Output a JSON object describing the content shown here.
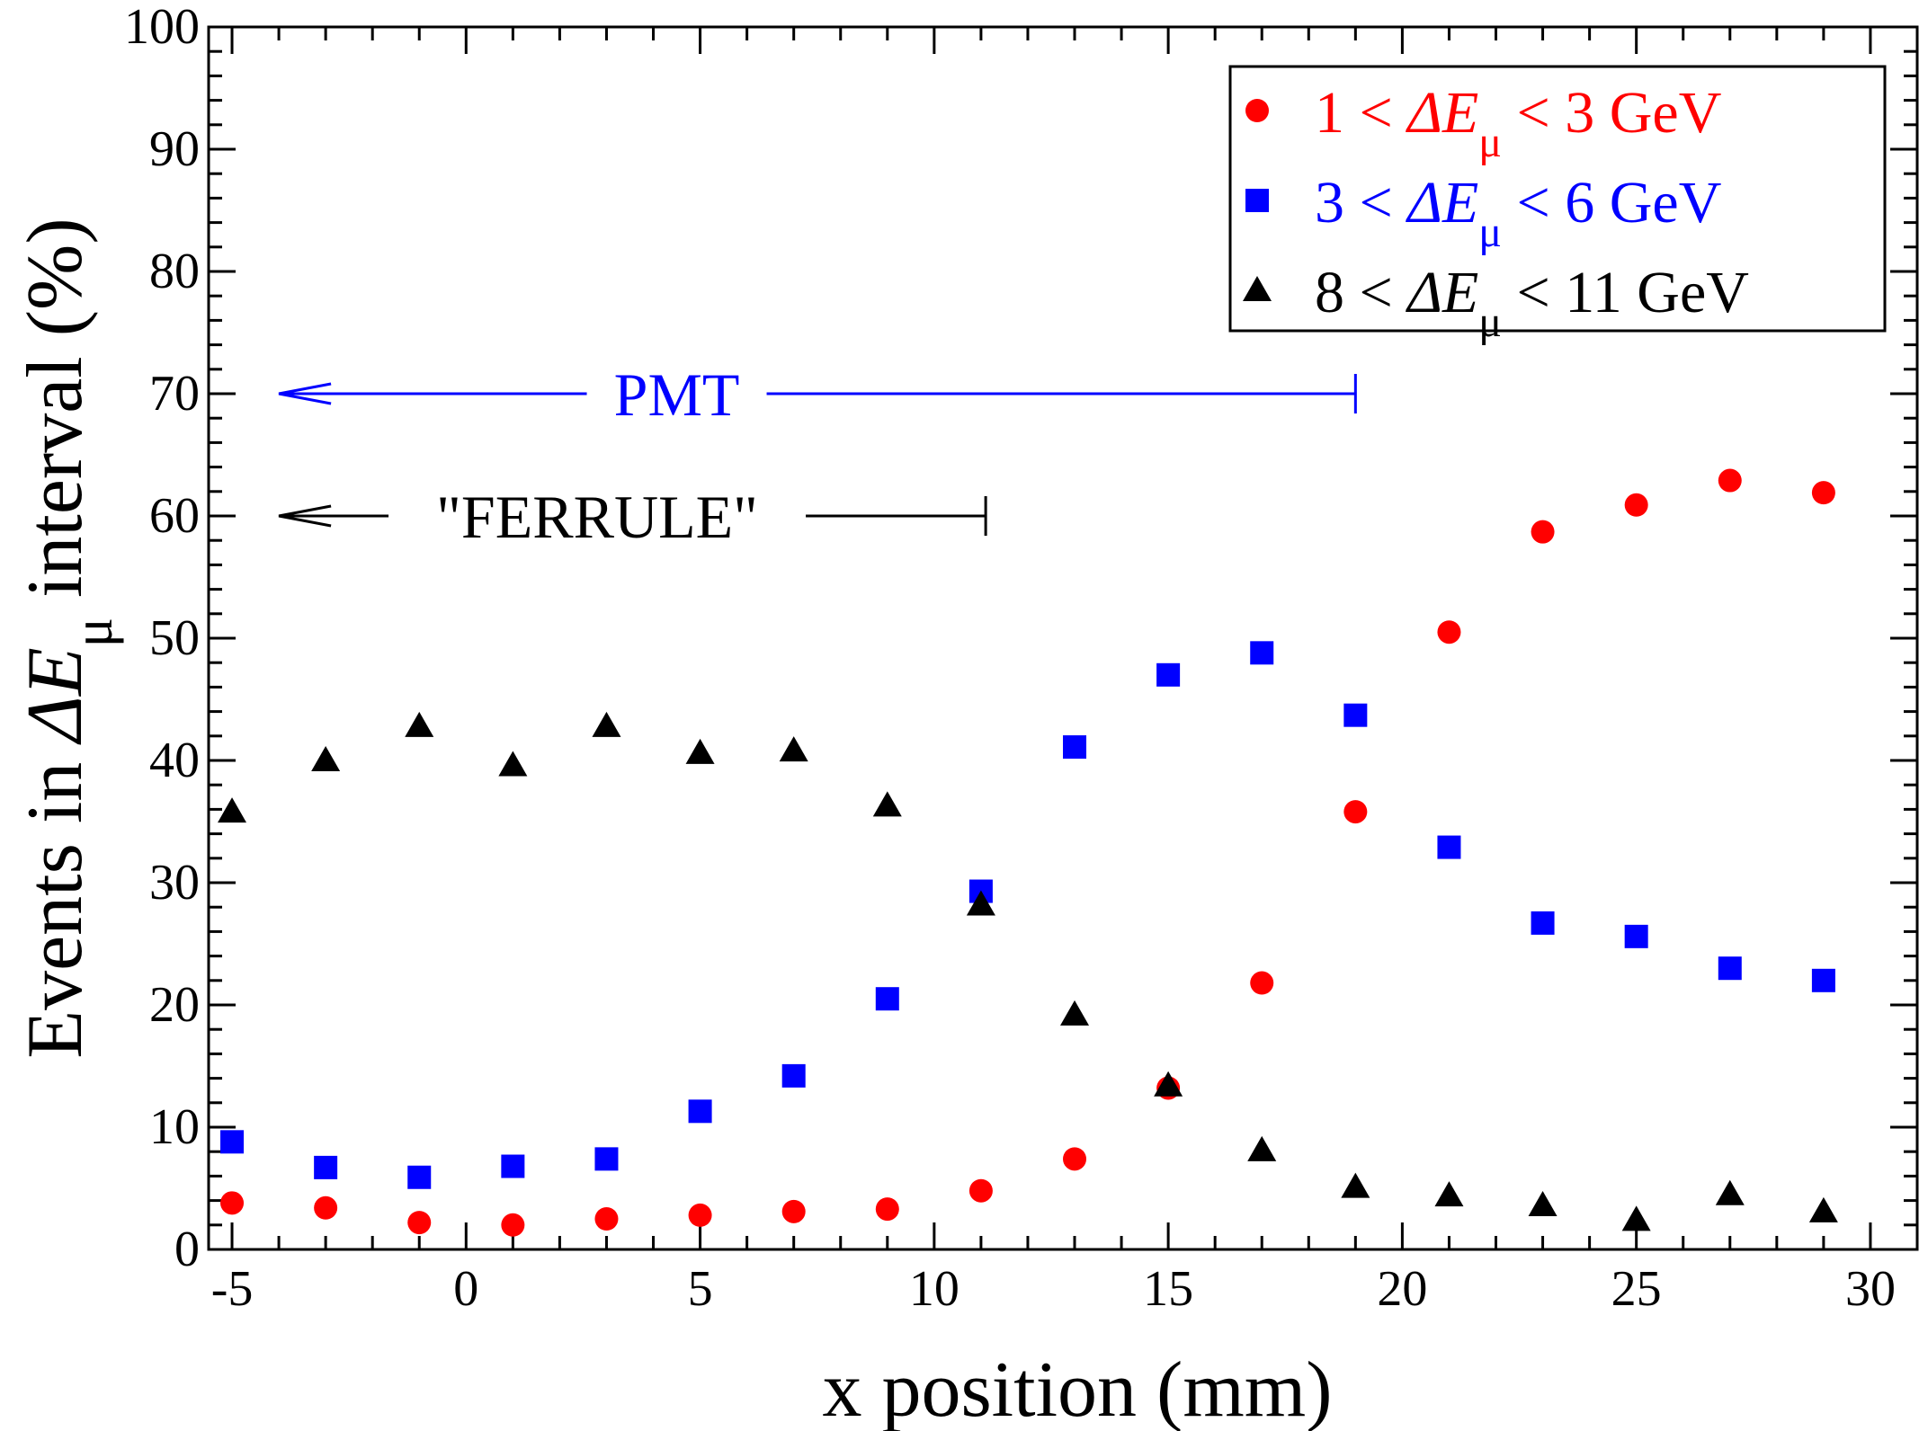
{
  "chart_data": {
    "type": "scatter",
    "xlabel": "x position (mm)",
    "ylabel": {
      "prefix": "Events in ",
      "symbol": "ΔE",
      "subscript": "μ",
      "suffix": " interval (%)"
    },
    "xlim": [
      -5.5,
      31
    ],
    "ylim": [
      0,
      100
    ],
    "x_ticks": [
      -5,
      0,
      5,
      10,
      15,
      20,
      25,
      30
    ],
    "y_ticks": [
      0,
      10,
      20,
      30,
      40,
      50,
      60,
      70,
      80,
      90,
      100
    ],
    "grid": false,
    "legend_position": "top-right",
    "series": [
      {
        "name": "1 < ΔEμ < 3 GeV",
        "legend": {
          "left": "1 < ",
          "symbol": "ΔE",
          "sub": "μ",
          "right": " < 3 GeV"
        },
        "marker": "circle",
        "color": "#ff0000",
        "x": [
          -5,
          -3,
          -1,
          1,
          3,
          5,
          7,
          9,
          11,
          13,
          15,
          17,
          19,
          21,
          23,
          25,
          27,
          29
        ],
        "y": [
          3.8,
          3.4,
          2.2,
          2.0,
          2.5,
          2.8,
          3.1,
          3.3,
          4.8,
          7.4,
          13.2,
          21.8,
          35.8,
          50.5,
          58.7,
          60.9,
          62.9,
          61.9
        ]
      },
      {
        "name": "3 < ΔEμ < 6 GeV",
        "legend": {
          "left": "3 < ",
          "symbol": "ΔE",
          "sub": "μ",
          "right": " < 6 GeV"
        },
        "marker": "square",
        "color": "#0000ff",
        "x": [
          -5,
          -3,
          -1,
          1,
          3,
          5,
          7,
          9,
          11,
          13,
          15,
          17,
          19,
          21,
          23,
          25,
          27,
          29
        ],
        "y": [
          8.8,
          6.7,
          5.9,
          6.8,
          7.4,
          11.3,
          14.2,
          20.5,
          29.3,
          41.1,
          47.0,
          48.8,
          43.7,
          32.9,
          26.7,
          25.6,
          23.0,
          22.0
        ]
      },
      {
        "name": "8 < ΔEμ < 11 GeV",
        "legend": {
          "left": "8 < ",
          "symbol": "ΔE",
          "sub": "μ",
          "right": " < 11 GeV"
        },
        "marker": "triangle",
        "color": "#000000",
        "x": [
          -5,
          -3,
          -1,
          1,
          3,
          5,
          7,
          9,
          11,
          13,
          15,
          17,
          19,
          21,
          23,
          25,
          27,
          29
        ],
        "y": [
          35.8,
          40.0,
          42.8,
          39.6,
          42.8,
          40.6,
          40.8,
          36.3,
          28.2,
          19.2,
          13.4,
          8.1,
          5.1,
          4.4,
          3.6,
          2.4,
          4.5,
          3.1
        ]
      }
    ],
    "annotations": [
      {
        "text": "PMT",
        "color": "#0000ff",
        "y": 70,
        "x_from": -4,
        "x_to": 19
      },
      {
        "text": "\"FERRULE\"",
        "color": "#000000",
        "y": 60,
        "x_from": -4,
        "x_to": 11.1
      }
    ]
  }
}
